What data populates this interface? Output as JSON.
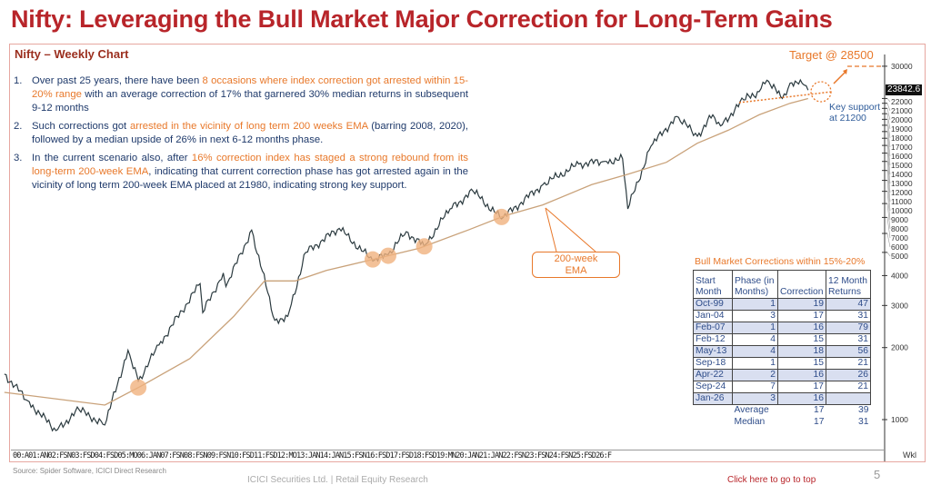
{
  "title": "Nifty: Leveraging the Bull Market Major Correction for Long-Term Gains",
  "subtitle": "Nifty – Weekly Chart",
  "points": [
    {
      "num": "1.",
      "pre": "Over past 25 years, there have been ",
      "hl": "8 occasions where index correction got arrested within 15-20% range",
      "post": " with an average correction of 17% that garnered 30% median returns in subsequent 9-12 months"
    },
    {
      "num": "2.",
      "pre": "Such corrections got ",
      "hl": "arrested in the vicinity of long term 200 weeks EMA",
      "post": " (barring 2008, 2020), followed by a median upside of 26%  in next 6-12 months phase."
    },
    {
      "num": "3.",
      "pre": "In the current scenario also, after ",
      "hl": "16% correction index has staged a strong rebound from its long-term 200-week EMA",
      "post": ", indicating that current correction phase has got arrested again in the vicinity of long term 200-week EMA placed at 21980, indicating strong key support."
    }
  ],
  "annotations": {
    "ema_label_line1": "200-week",
    "ema_label_line2": "EMA",
    "target": "Target  @ 28500",
    "support_line1": "Key support",
    "support_line2": "at 21200",
    "price_tag": "23842.6"
  },
  "table": {
    "title": "Bull Market Corrections within 15%-20%",
    "headers": [
      [
        "Start",
        "Month"
      ],
      [
        "Phase (in",
        "Months)"
      ],
      [
        "",
        "Correction"
      ],
      [
        "12 Month",
        "Returns"
      ]
    ],
    "rows": [
      [
        "Oct-99",
        "1",
        "19",
        "47"
      ],
      [
        "Jan-04",
        "3",
        "17",
        "31"
      ],
      [
        "Feb-07",
        "1",
        "16",
        "79"
      ],
      [
        "Feb-12",
        "4",
        "15",
        "31"
      ],
      [
        "May-13",
        "4",
        "18",
        "56"
      ],
      [
        "Sep-18",
        "1",
        "15",
        "21"
      ],
      [
        "Apr-22",
        "2",
        "16",
        "26"
      ],
      [
        "Sep-24",
        "7",
        "17",
        "21"
      ],
      [
        "Jan-26",
        "3",
        "16",
        ""
      ]
    ],
    "summary": [
      [
        "Average",
        "17",
        "39"
      ],
      [
        "Median",
        "17",
        "31"
      ]
    ]
  },
  "chart_data": {
    "type": "line",
    "title": "Nifty – Weekly Chart",
    "y_scale": "log",
    "ylim": [
      1000,
      30000
    ],
    "y_ticks": [
      1000,
      2000,
      3000,
      4000,
      5000,
      6000,
      7000,
      8000,
      9000,
      10000,
      11000,
      12000,
      13000,
      14000,
      15000,
      16000,
      17000,
      18000,
      19000,
      20000,
      21000,
      22000,
      30000
    ],
    "x_tick_labels": "00:A01:AN02:FSN03:FSD04:FSD05:MO06:JAN07:FSN08:FSN09:FSN10:FSD11:FSD12:MO13:JAN14:JAN15:FSN16:FSD17:FSD18:FSD19:MN20:JAN21:JAN22:FSN23:FSN24:FSN25:FSD26:F",
    "x_unit_label": "Wkl",
    "series": [
      {
        "x": [
          "2000-01",
          "2000-10",
          "2001-09",
          "2002-06",
          "2003-04",
          "2004-01",
          "2004-05",
          "2005-01",
          "2006-05",
          "2006-06",
          "2007-02",
          "2007-03",
          "2008-01",
          "2008-10",
          "2009-03",
          "2009-10",
          "2010-11",
          "2011-12",
          "2012-06",
          "2013-01",
          "2013-08",
          "2014-06",
          "2015-03",
          "2016-02",
          "2017-06",
          "2018-08",
          "2019-06",
          "2020-01",
          "2020-03",
          "2020-12",
          "2021-10",
          "2022-06",
          "2022-12",
          "2023-03",
          "2023-12",
          "2024-06",
          "2024-09",
          "2025-03",
          "2025-06",
          "2025-10",
          "2026-01"
        ],
        "values": [
          1550,
          1200,
          900,
          1100,
          950,
          1950,
          1450,
          2050,
          3700,
          2800,
          4100,
          3600,
          6200,
          2600,
          2700,
          5000,
          6300,
          4600,
          4900,
          6100,
          5300,
          7600,
          9000,
          6900,
          9600,
          11700,
          12000,
          12300,
          7600,
          13900,
          18500,
          15300,
          18800,
          16900,
          21700,
          23500,
          26200,
          22000,
          25500,
          26300,
          23842
        ]
      },
      {
        "x": [
          "2000-01",
          "2003-04",
          "2004-06",
          "2006-01",
          "2007-06",
          "2008-06",
          "2009-06",
          "2010-06",
          "2012-01",
          "2013-06",
          "2015-01",
          "2016-03",
          "2017-06",
          "2019-01",
          "2020-03",
          "2021-06",
          "2022-06",
          "2023-06",
          "2024-06",
          "2025-06",
          "2026-01"
        ],
        "values": [
          1300,
          1150,
          1380,
          1800,
          2700,
          3800,
          3800,
          4200,
          4700,
          5200,
          6200,
          7100,
          7900,
          9600,
          10600,
          11900,
          14300,
          16200,
          18800,
          21000,
          21980
        ]
      }
    ],
    "highlights": [
      "2004-05",
      "2011-12",
      "2012-06",
      "2013-08",
      "2016-02"
    ],
    "key_support": 21200,
    "target": 28500,
    "last_price": 23842.6,
    "colors": {
      "price": "#2b3a3f",
      "ema": "#c9a27a",
      "highlight": "#f0b27e",
      "accent": "#e8782a"
    }
  },
  "footer": {
    "source": "Source: Spider Software, ICICI Direct Research",
    "company": "ICICI Securities Ltd. | Retail Equity Research",
    "top_link": "Click here to go to top",
    "page": "5"
  }
}
